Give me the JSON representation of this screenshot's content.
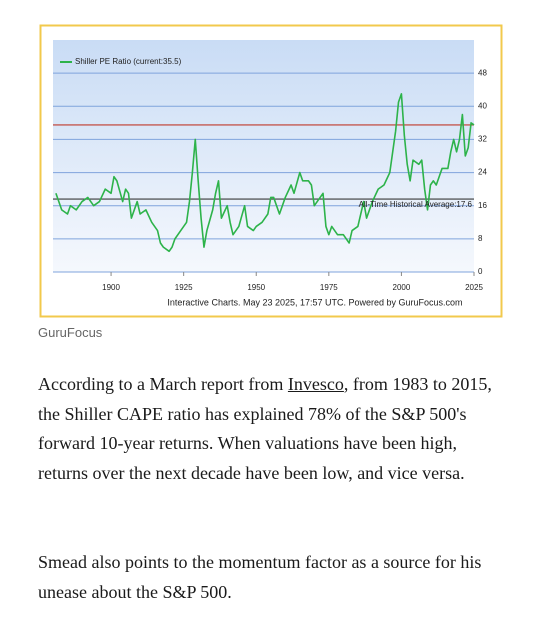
{
  "chart_data": {
    "type": "line",
    "footer": "Interactive Charts. May 23 2025, 17:57 UTC. Powered by GuruFocus.com",
    "x": [
      1881,
      1883,
      1885,
      1886,
      1888,
      1890,
      1892,
      1894,
      1896,
      1898,
      1900,
      1901,
      1902,
      1904,
      1905,
      1906,
      1907,
      1909,
      1910,
      1912,
      1914,
      1916,
      1917,
      1918,
      1920,
      1921,
      1922,
      1924,
      1926,
      1927,
      1928,
      1929,
      1930,
      1931,
      1932,
      1933,
      1935,
      1936,
      1937,
      1938,
      1940,
      1941,
      1942,
      1944,
      1946,
      1947,
      1949,
      1950,
      1952,
      1954,
      1955,
      1956,
      1958,
      1960,
      1962,
      1963,
      1965,
      1966,
      1968,
      1969,
      1970,
      1972,
      1973,
      1974,
      1975,
      1976,
      1978,
      1980,
      1982,
      1983,
      1985,
      1987,
      1988,
      1990,
      1992,
      1994,
      1996,
      1997,
      1998,
      1999,
      2000,
      2001,
      2002,
      2003,
      2004,
      2006,
      2007,
      2008,
      2009,
      2010,
      2011,
      2012,
      2013,
      2014,
      2016,
      2017,
      2018,
      2019,
      2020,
      2021,
      2022,
      2023,
      2024,
      2025
    ],
    "series": [
      {
        "name": "Shiller PE Ratio (current:35.5)",
        "color": "#2db34a",
        "values": [
          19,
          15,
          14,
          16,
          15,
          17,
          18,
          16,
          17,
          20,
          19,
          23,
          22,
          17,
          20,
          19,
          13,
          17,
          14,
          15,
          12,
          10,
          7,
          6,
          5,
          6,
          8,
          10,
          12,
          17,
          24,
          32,
          22,
          13,
          6,
          10,
          15,
          19,
          22,
          13,
          16,
          12,
          9,
          11,
          16,
          11,
          10,
          11,
          12,
          14,
          18,
          18,
          14,
          18,
          21,
          19,
          24,
          22,
          22,
          21,
          16,
          18,
          19,
          11,
          9,
          11,
          9,
          9,
          7,
          10,
          11,
          17,
          13,
          17,
          20,
          21,
          24,
          29,
          34,
          41,
          43,
          33,
          26,
          22,
          27,
          26,
          27,
          20,
          15,
          21,
          22,
          21,
          23,
          25,
          25,
          29,
          32,
          29,
          32,
          38,
          28,
          30,
          36,
          35.5
        ]
      }
    ],
    "reference_lines": [
      {
        "value": 35.5,
        "color": "#c0392b"
      },
      {
        "value": 17.6,
        "color": "#3a3a3a",
        "label": "All-Time Historical Average:17.6"
      }
    ],
    "xlim": [
      1880,
      2025
    ],
    "xticks": [
      1900,
      1925,
      1950,
      1975,
      2000,
      2025
    ],
    "ylim": [
      0,
      56
    ],
    "yticks": [
      0,
      8,
      16,
      24,
      32,
      40,
      48
    ],
    "grid": true
  },
  "caption": "GuruFocus",
  "paragraphs": [
    [
      "According to a March report from ",
      "Invesco",
      ", from 1983 to 2015, the Shiller CAPE ratio has explained 78% of the S&P 500's forward 10-year returns. When valuations have been high, returns over the next decade have been low, and vice versa."
    ],
    [
      "Smead also points to the momentum factor as a source for his unease about the S&P 500."
    ]
  ]
}
